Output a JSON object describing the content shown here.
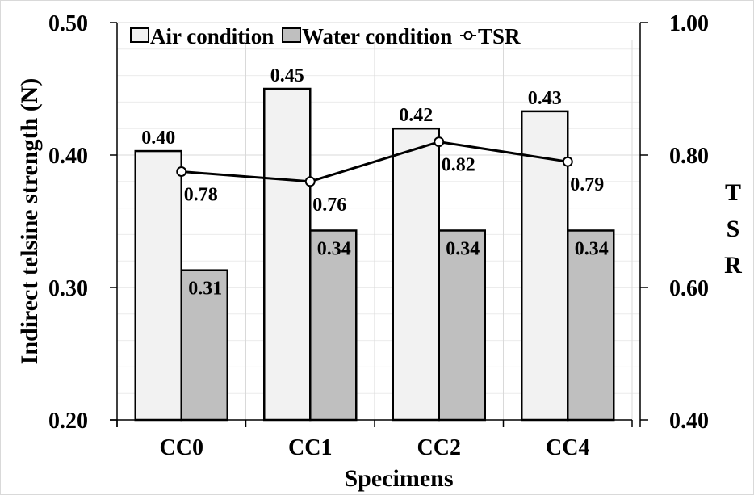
{
  "chart_data": {
    "type": "bar",
    "categories": [
      "CC0",
      "CC1",
      "CC2",
      "CC4"
    ],
    "series": [
      {
        "name": "Air condition",
        "type": "bar",
        "axis": "left",
        "values": [
          0.403,
          0.45,
          0.42,
          0.433
        ],
        "labels": [
          "0.40",
          "0.45",
          "0.42",
          "0.43"
        ],
        "color": "#f2f2f2"
      },
      {
        "name": "Water condition",
        "type": "bar",
        "axis": "left",
        "values": [
          0.313,
          0.343,
          0.343,
          0.343
        ],
        "labels": [
          "0.31",
          "0.34",
          "0.34",
          "0.34"
        ],
        "color": "#bfbfbf"
      },
      {
        "name": "TSR",
        "type": "line",
        "axis": "right",
        "values": [
          0.775,
          0.76,
          0.82,
          0.79
        ],
        "labels": [
          "0.78",
          "0.76",
          "0.82",
          "0.79"
        ],
        "color": "#000000"
      }
    ],
    "xlabel": "Specimens",
    "ylabel": "Indirect telsine strength (N)",
    "y2label": [
      "T",
      "S",
      "R"
    ],
    "ylim": [
      0.2,
      0.5
    ],
    "y2lim": [
      0.4,
      1.0
    ],
    "yticks": [
      "0.20",
      "0.30",
      "0.40",
      "0.50"
    ],
    "y2ticks": [
      "0.40",
      "0.60",
      "0.80",
      "1.00"
    ],
    "grid": true,
    "legend_position": "top"
  }
}
